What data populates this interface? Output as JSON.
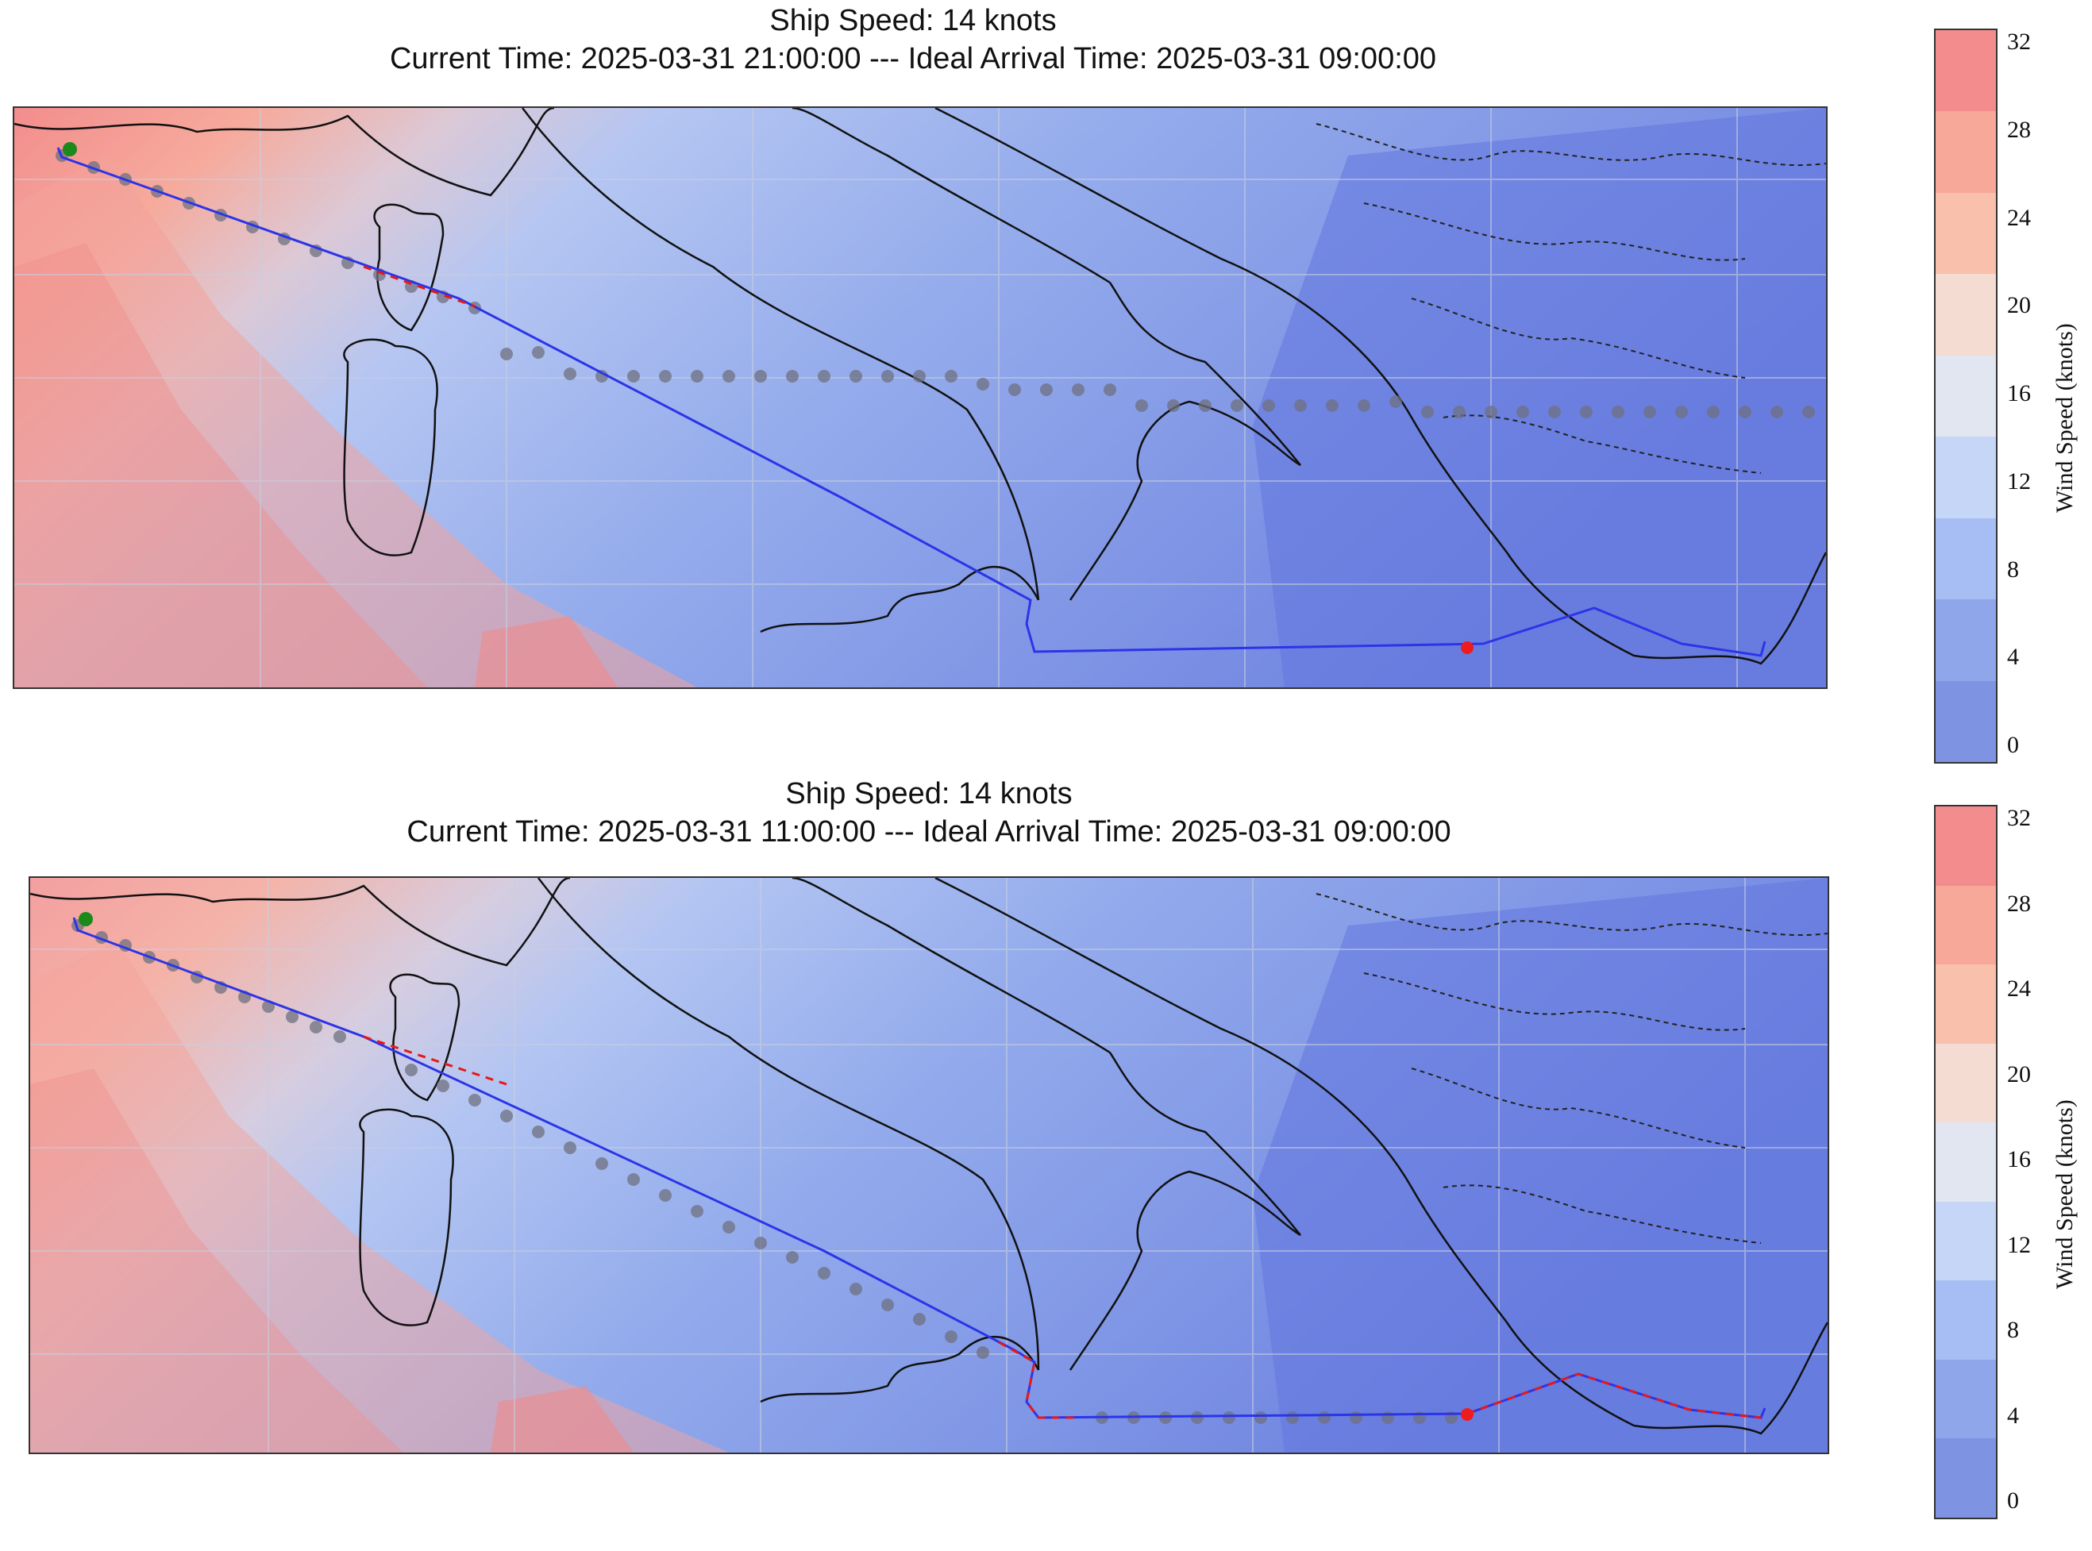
{
  "panels": [
    {
      "title": "Ship Speed: 14 knots",
      "subtitle": "Current Time: 2025-03-31 21:00:00 --- Ideal Arrival Time: 2025-03-31 09:00:00"
    },
    {
      "title": "Ship Speed: 14 knots",
      "subtitle": "Current Time: 2025-03-31 11:00:00 --- Ideal Arrival Time: 2025-03-31 09:00:00"
    }
  ],
  "colorbar": {
    "label": "Wind Speed (knots)",
    "ticks": [
      "32",
      "28",
      "24",
      "20",
      "16",
      "12",
      "8",
      "4",
      "0"
    ],
    "colors": [
      "#f38d8d",
      "#f7a898",
      "#f9c0ac",
      "#f5dcd2",
      "#e2e6f1",
      "#c6d6f6",
      "#a7bef4",
      "#8fa7ea",
      "#7e93e2"
    ]
  },
  "legend_colors": {
    "start_marker": "#1b8a1b",
    "current_marker": "#ee1c1c",
    "route_line": "#2c34e8",
    "route_segment": "#e81818",
    "waypoint_dots": "#6f7180"
  }
}
